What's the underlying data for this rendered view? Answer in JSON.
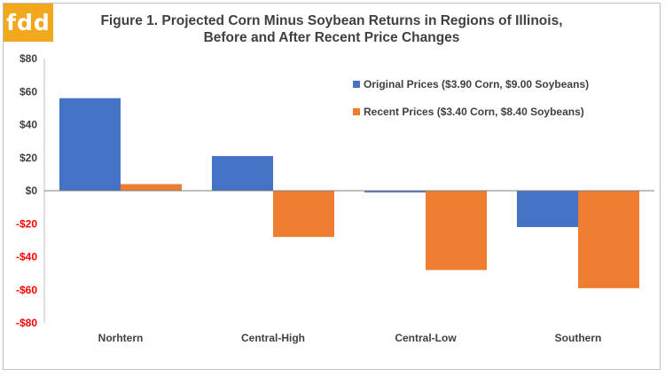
{
  "brand": {
    "logo_text": "fdd",
    "logo_color": "#f2a81d"
  },
  "chart_data": {
    "type": "bar",
    "title_line1": "Figure 1. Projected Corn Minus Soybean Returns in Regions of Illinois,",
    "title_line2": "Before and After Recent Price Changes",
    "xlabel": "",
    "ylabel": "",
    "categories": [
      "Norhtern",
      "Central-High",
      "Central-Low",
      "Southern"
    ],
    "series": [
      {
        "name": "Original Prices ($3.90 Corn, $9.00 Soybeans)",
        "values": [
          56,
          21,
          -1,
          -22
        ],
        "color": "#4472c4"
      },
      {
        "name": "Recent Prices ($3.40 Corn, $8.40 Soybeans)",
        "values": [
          4,
          -28,
          -48,
          -59
        ],
        "color": "#ed7d31"
      }
    ],
    "ylim": [
      -80,
      80
    ],
    "yticks": [
      "$80",
      "$60",
      "$40",
      "$20",
      "$0",
      "-$20",
      "-$40",
      "-$60",
      "-$80"
    ],
    "ytick_values": [
      80,
      60,
      40,
      20,
      0,
      -20,
      -40,
      -60,
      -80
    ],
    "positive_tick_color": "#404040",
    "negative_tick_color": "#ff0000",
    "legend_position": "top-right",
    "grid": false
  }
}
